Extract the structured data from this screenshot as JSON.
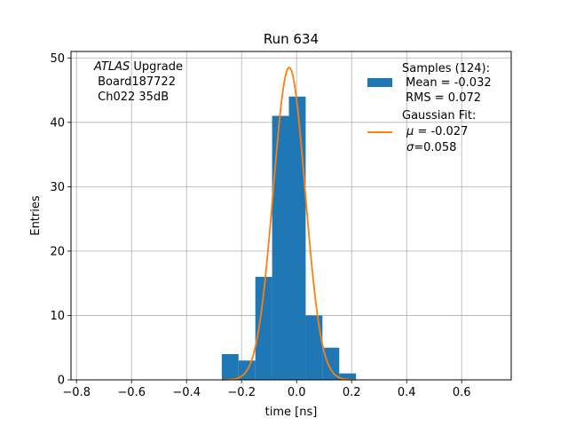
{
  "chart_data": {
    "type": "bar",
    "title": "Run 634",
    "xlabel": "time [ns]",
    "ylabel": "Entries",
    "xlim": [
      -0.82,
      0.78
    ],
    "ylim": [
      0,
      51
    ],
    "grid": true,
    "x_ticks": [
      -0.8,
      -0.6,
      -0.4,
      -0.2,
      0.0,
      0.2,
      0.4,
      0.6
    ],
    "x_tick_labels": [
      "−0.8",
      "−0.6",
      "−0.4",
      "−0.2",
      "0.0",
      "0.2",
      "0.4",
      "0.6"
    ],
    "y_ticks": [
      0,
      10,
      20,
      30,
      40,
      50
    ],
    "y_tick_labels": [
      "0",
      "10",
      "20",
      "30",
      "40",
      "50"
    ],
    "histogram": {
      "name": "Samples (124):",
      "color": "#1f77b4",
      "bin_edges": [
        -0.272,
        -0.211,
        -0.15,
        -0.089,
        -0.028,
        0.033,
        0.094,
        0.155,
        0.216
      ],
      "counts": [
        4,
        3,
        16,
        41,
        44,
        10,
        5,
        1
      ]
    },
    "fit": {
      "name": "Gaussian Fit:",
      "color": "#ff7f0e",
      "mu": -0.027,
      "sigma": 0.058,
      "amplitude": 48.5
    },
    "legend": {
      "placement": "top-right",
      "samples_lines": [
        "Samples (124):",
        " Mean = -0.032",
        " RMS = 0.072"
      ],
      "fit_title": "Gaussian Fit:",
      "fit_mu_symbol": "μ",
      "fit_mu_value": " = -0.027",
      "fit_sigma_symbol": "σ",
      "fit_sigma_value": "=0.058"
    },
    "annotation": {
      "placement": "top-left",
      "experiment": "ATLAS",
      "experiment_suffix": " Upgrade",
      "board": " Board187722",
      "channel": " Ch022 35dB"
    }
  }
}
